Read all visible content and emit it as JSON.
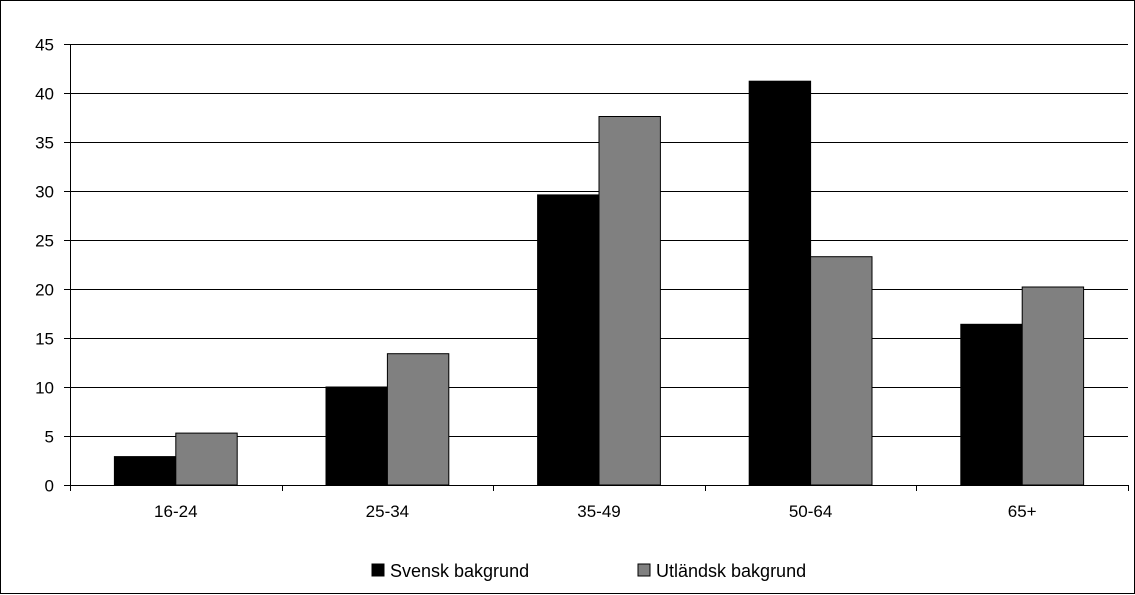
{
  "chart_data": {
    "type": "bar",
    "title": "",
    "xlabel": "",
    "ylabel": "",
    "categories": [
      "16-24",
      "25-34",
      "35-49",
      "50-64",
      "65+"
    ],
    "series": [
      {
        "name": "Svensk bakgrund",
        "color": "#000000",
        "values": [
          2.9,
          10.0,
          29.6,
          41.2,
          16.4
        ]
      },
      {
        "name": "Utländsk bakgrund",
        "color": "#808080",
        "values": [
          5.3,
          13.4,
          37.6,
          23.3,
          20.2
        ]
      }
    ],
    "ylim": [
      0,
      45
    ],
    "yticks": [
      0,
      5,
      10,
      15,
      20,
      25,
      30,
      35,
      40,
      45
    ],
    "grid": true,
    "legend_position": "bottom-center"
  }
}
